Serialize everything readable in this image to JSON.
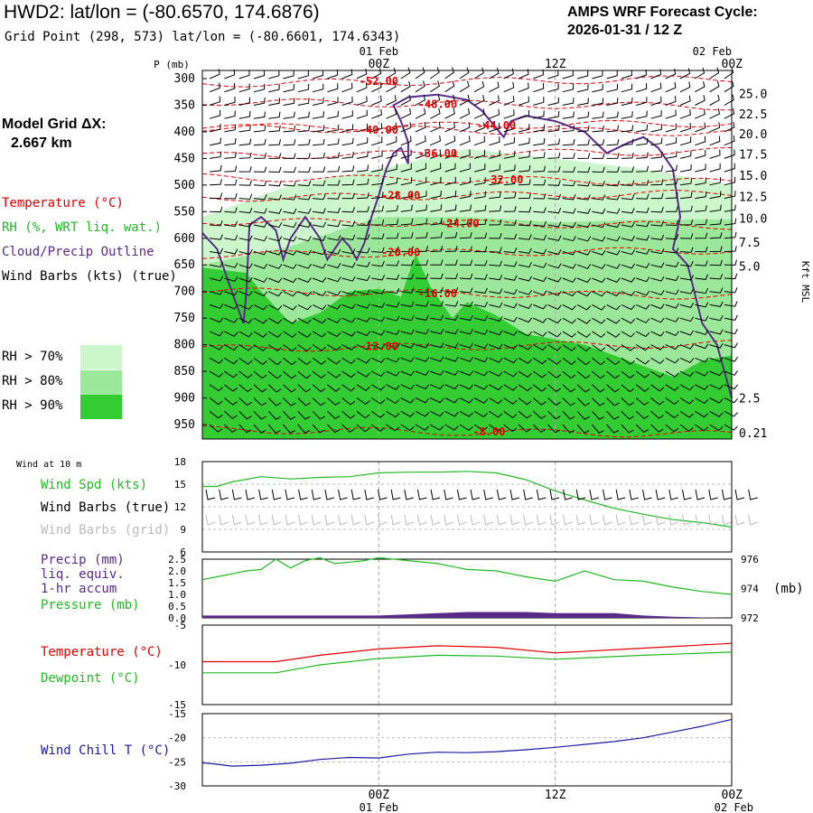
{
  "header": {
    "title": "HWD2:  lat/lon = (-80.6570, 174.6876)",
    "subtitle": "Grid Point (298, 573) lat/lon = (-80.6601, 174.6343)",
    "cycle_line1": "AMPS WRF Forecast Cycle:",
    "cycle_line2": "2026-01-31 / 12  Z",
    "grid_dx_line1": "Model Grid ΔX:",
    "grid_dx_line2": "2.667 km"
  },
  "legend": {
    "temperature": "Temperature (°C)",
    "rh": "RH (%, WRT liq. wat.)",
    "cloud": "Cloud/Precip Outline",
    "wind": "Wind Barbs (kts) (true)",
    "rh70": "RH > 70%",
    "rh80": "RH > 80%",
    "rh90": "RH > 90%"
  },
  "colors": {
    "temperature": "#e00000",
    "cloud": "#5a2a8a",
    "rh70": "#ccf7cc",
    "rh80": "#9be89b",
    "rh90": "#33cc33",
    "green_line": "#22bb22",
    "precip": "#5a2a8a",
    "dewpoint": "#22bb22",
    "windchill": "#1a1aa0",
    "wind_grid": "#bbbbbb"
  },
  "chart_data": [
    {
      "type": "area",
      "title": "",
      "ylabel": "P (mb)",
      "y2label": "Kft MSL",
      "x_ticks": [
        {
          "label": "00Z",
          "date": "01 Feb",
          "h": 12
        },
        {
          "label": "12Z",
          "date": "",
          "h": 24
        },
        {
          "label": "00Z",
          "date": "02 Feb",
          "h": 36
        }
      ],
      "xlim_hours": [
        0,
        36
      ],
      "y_ticks_mb": [
        300,
        350,
        400,
        450,
        500,
        550,
        600,
        650,
        700,
        750,
        800,
        850,
        900,
        950
      ],
      "ylim_mb": [
        290,
        975
      ],
      "y2_ticks": [
        {
          "label": "25.0",
          "mb": 330
        },
        {
          "label": "22.5",
          "mb": 368
        },
        {
          "label": "20.0",
          "mb": 405
        },
        {
          "label": "17.5",
          "mb": 443
        },
        {
          "label": "15.0",
          "mb": 483
        },
        {
          "label": "12.5",
          "mb": 523
        },
        {
          "label": "10.0",
          "mb": 564
        },
        {
          "label": "7.5",
          "mb": 609
        },
        {
          "label": "5.0",
          "mb": 654
        },
        {
          "label": "2.5",
          "mb": 902
        },
        {
          "label": "0.21",
          "mb": 967
        }
      ],
      "temperature_contours": [
        {
          "label": "-52.00",
          "lx": 12.0,
          "lmb": 305
        },
        {
          "label": "-48.00",
          "lx": 16.0,
          "lmb": 348
        },
        {
          "label": "-44.00",
          "lx": 20.0,
          "lmb": 388
        },
        {
          "label": "-40.00",
          "lx": 12.0,
          "lmb": 397
        },
        {
          "label": "-36.00",
          "lx": 16.0,
          "lmb": 441
        },
        {
          "label": "-32.00",
          "lx": 20.5,
          "lmb": 490
        },
        {
          "label": "-28.00",
          "lx": 13.5,
          "lmb": 520
        },
        {
          "label": "-24.00",
          "lx": 17.5,
          "lmb": 572
        },
        {
          "label": "-20.00",
          "lx": 13.5,
          "lmb": 627
        },
        {
          "label": "-16.00",
          "lx": 16.0,
          "lmb": 704
        },
        {
          "label": "-12.00",
          "lx": 12.0,
          "lmb": 803
        },
        {
          "label": "-8.00",
          "lx": 19.5,
          "lmb": 964
        }
      ],
      "rh_70_top_mb": [
        [
          0,
          560
        ],
        [
          6,
          500
        ],
        [
          12,
          470
        ],
        [
          18,
          432
        ],
        [
          24,
          450
        ],
        [
          30,
          470
        ],
        [
          36,
          500
        ]
      ],
      "rh_80_top_mb": [
        [
          0,
          650
        ],
        [
          6,
          615
        ],
        [
          12,
          560
        ],
        [
          18,
          560
        ],
        [
          24,
          570
        ],
        [
          30,
          565
        ],
        [
          36,
          565
        ]
      ],
      "rh_90_top_mb": [
        [
          0,
          655
        ],
        [
          3,
          665
        ],
        [
          4,
          700
        ],
        [
          6,
          760
        ],
        [
          8,
          740
        ],
        [
          10,
          700
        ],
        [
          12,
          695
        ],
        [
          13.5,
          710
        ],
        [
          14.5,
          630
        ],
        [
          15.5,
          690
        ],
        [
          17,
          750
        ],
        [
          18,
          720
        ],
        [
          20,
          745
        ],
        [
          22,
          780
        ],
        [
          24,
          790
        ],
        [
          26,
          800
        ],
        [
          28,
          820
        ],
        [
          30,
          840
        ],
        [
          32,
          860
        ],
        [
          34,
          830
        ],
        [
          36,
          820
        ]
      ],
      "wind_rows_mb": [
        300,
        325,
        350,
        375,
        400,
        425,
        450,
        475,
        500,
        525,
        550,
        575,
        600,
        625,
        650,
        675,
        700,
        725,
        750,
        775,
        800,
        825,
        850,
        875,
        900,
        925,
        950
      ]
    },
    {
      "type": "line",
      "title": "Wind at 10 m",
      "ylim": [
        6,
        18
      ],
      "y_ticks": [
        6,
        9,
        12,
        15,
        18
      ],
      "series": [
        {
          "name": "Wind Spd (kts)",
          "x": [
            0,
            1,
            2,
            4,
            6,
            8,
            10,
            12,
            14,
            16,
            18,
            20,
            22,
            24,
            26,
            28,
            30,
            32,
            34,
            36
          ],
          "values": [
            14.7,
            14.7,
            15.3,
            16.0,
            15.7,
            15.9,
            16.0,
            16.5,
            16.6,
            16.6,
            16.7,
            16.5,
            15.6,
            14.1,
            12.9,
            11.8,
            11.0,
            10.3,
            9.9,
            9.3
          ]
        }
      ],
      "labels": [
        "Wind Spd (kts)",
        "Wind Barbs (true)",
        "Wind Barbs (grid)"
      ]
    },
    {
      "type": "line",
      "ylim": [
        0.0,
        2.5
      ],
      "y_ticks": [
        0.0,
        0.5,
        1.0,
        1.5,
        2.0,
        2.5
      ],
      "y2lim": [
        972,
        976
      ],
      "y2_ticks": [
        972,
        974,
        976
      ],
      "y2label": "(mb)",
      "series": [
        {
          "name": "Pressure (mb)",
          "axis": "right",
          "x": [
            0,
            1,
            2,
            3,
            4,
            5,
            6,
            7,
            8,
            9,
            10,
            11,
            12,
            14,
            16,
            18,
            20,
            22,
            24,
            26,
            28,
            30,
            32,
            34,
            36
          ],
          "values": [
            974.6,
            974.8,
            975.0,
            975.2,
            975.3,
            976.0,
            975.4,
            975.9,
            976.1,
            975.7,
            975.8,
            975.9,
            976.1,
            975.9,
            975.7,
            975.3,
            975.2,
            974.8,
            974.5,
            975.2,
            974.6,
            974.5,
            974.1,
            973.8,
            973.6
          ]
        },
        {
          "name": "Precip (mm)",
          "axis": "left",
          "type": "area",
          "x": [
            0,
            4,
            8,
            12,
            14,
            16,
            18,
            20,
            22,
            24,
            26,
            28,
            30,
            32,
            34,
            36
          ],
          "values": [
            0.1,
            0.1,
            0.1,
            0.1,
            0.15,
            0.2,
            0.25,
            0.25,
            0.25,
            0.2,
            0.2,
            0.2,
            0.1,
            0.05,
            0.02,
            0.0
          ]
        }
      ],
      "labels": [
        "Precip (mm)",
        "liq. equiv.",
        "1-hr accum",
        "Pressure (mb)"
      ]
    },
    {
      "type": "line",
      "ylim": [
        -15,
        -5
      ],
      "y_ticks": [
        -15,
        -10,
        -5
      ],
      "series": [
        {
          "name": "Temperature (°C)",
          "x": [
            0,
            5,
            8,
            12,
            16,
            20,
            24,
            30,
            36
          ],
          "values": [
            -9.6,
            -9.6,
            -8.8,
            -8.0,
            -7.6,
            -7.8,
            -8.5,
            -7.9,
            -7.3
          ]
        },
        {
          "name": "Dewpoint (°C)",
          "x": [
            0,
            5,
            8,
            12,
            16,
            20,
            24,
            30,
            36
          ],
          "values": [
            -11.0,
            -11.0,
            -10.0,
            -9.2,
            -8.8,
            -8.9,
            -9.3,
            -8.8,
            -8.4
          ]
        }
      ],
      "labels": [
        "Temperature (°C)",
        "Dewpoint (°C)"
      ]
    },
    {
      "type": "line",
      "ylim": [
        -30,
        -15
      ],
      "y_ticks": [
        -30,
        -25,
        -20,
        -15
      ],
      "series": [
        {
          "name": "Wind Chill T (°C)",
          "x": [
            0,
            1,
            2,
            3,
            4,
            6,
            8,
            10,
            12,
            14,
            16,
            18,
            20,
            22,
            24,
            26,
            28,
            30,
            32,
            34,
            36
          ],
          "values": [
            -25.2,
            -25.5,
            -25.9,
            -25.8,
            -25.7,
            -25.3,
            -24.5,
            -24.1,
            -24.2,
            -23.4,
            -23.0,
            -23.1,
            -22.9,
            -22.5,
            -22.0,
            -21.4,
            -20.8,
            -20.0,
            -18.8,
            -17.6,
            -16.2
          ]
        }
      ],
      "labels": [
        "Wind Chill T (°C)"
      ]
    }
  ],
  "panels": {
    "wind_title": "Wind at 10 m",
    "wind_spd": "Wind Spd (kts)",
    "wind_barbs_true": "Wind Barbs (true)",
    "wind_barbs_grid": "Wind Barbs (grid)",
    "precip1": "Precip (mm)",
    "precip2": "liq. equiv.",
    "precip3": "1-hr accum",
    "pressure": "Pressure (mb)",
    "pressure_unit": "(mb)",
    "temperature": "Temperature (°C)",
    "dewpoint": "Dewpoint (°C)",
    "windchill": "Wind Chill T (°C)"
  }
}
